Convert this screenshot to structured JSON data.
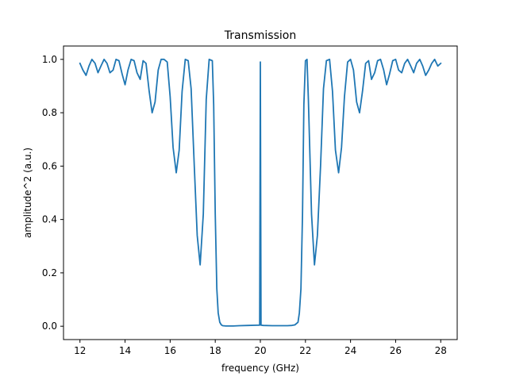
{
  "chart_data": {
    "type": "line",
    "title": "Transmission",
    "xlabel": "frequency (GHz)",
    "ylabel": "amplitude^2 (a.u.)",
    "xlim": [
      11.27,
      28.73
    ],
    "ylim": [
      -0.05,
      1.05
    ],
    "x_ticks": [
      12,
      14,
      16,
      18,
      20,
      22,
      24,
      26,
      28
    ],
    "x_tick_labels": [
      "12",
      "14",
      "16",
      "18",
      "20",
      "22",
      "24",
      "26",
      "28"
    ],
    "y_ticks": [
      0.0,
      0.2,
      0.4,
      0.6,
      0.8,
      1.0
    ],
    "y_tick_labels": [
      "0.0",
      "0.2",
      "0.4",
      "0.6",
      "0.8",
      "1.0"
    ],
    "grid": false,
    "legend": "none",
    "series": [
      {
        "color": "#1f77b4",
        "x": [
          12.0,
          12.13,
          12.27,
          12.4,
          12.53,
          12.67,
          12.8,
          12.93,
          13.07,
          13.2,
          13.33,
          13.47,
          13.6,
          13.73,
          13.87,
          14.0,
          14.13,
          14.27,
          14.4,
          14.53,
          14.67,
          14.8,
          14.93,
          15.07,
          15.2,
          15.33,
          15.47,
          15.6,
          15.73,
          15.87,
          16.0,
          16.13,
          16.27,
          16.4,
          16.53,
          16.67,
          16.8,
          16.93,
          17.07,
          17.2,
          17.33,
          17.47,
          17.6,
          17.73,
          17.87,
          17.93,
          18.0,
          18.07,
          18.13,
          18.2,
          18.27,
          18.33,
          18.47,
          18.6,
          18.8,
          19.07,
          19.47,
          19.87,
          19.97,
          20.0,
          20.03,
          20.13,
          20.53,
          20.93,
          21.2,
          21.4,
          21.53,
          21.67,
          21.73,
          21.8,
          21.87,
          21.93,
          22.0,
          22.07,
          22.13,
          22.27,
          22.4,
          22.53,
          22.67,
          22.8,
          22.93,
          23.07,
          23.2,
          23.33,
          23.47,
          23.6,
          23.73,
          23.87,
          24.0,
          24.13,
          24.27,
          24.4,
          24.53,
          24.67,
          24.8,
          24.93,
          25.07,
          25.2,
          25.33,
          25.47,
          25.6,
          25.73,
          25.87,
          26.0,
          26.13,
          26.27,
          26.4,
          26.53,
          26.67,
          26.8,
          26.93,
          27.07,
          27.2,
          27.33,
          27.47,
          27.6,
          27.73,
          27.87,
          28.0
        ],
        "y": [
          0.985,
          0.96,
          0.94,
          0.975,
          1.0,
          0.985,
          0.95,
          0.975,
          1.0,
          0.985,
          0.95,
          0.96,
          1.0,
          0.995,
          0.945,
          0.905,
          0.96,
          1.0,
          0.995,
          0.95,
          0.925,
          0.995,
          0.985,
          0.88,
          0.8,
          0.84,
          0.96,
          1.0,
          1.0,
          0.99,
          0.86,
          0.67,
          0.575,
          0.66,
          0.88,
          1.0,
          0.995,
          0.89,
          0.6,
          0.34,
          0.23,
          0.42,
          0.85,
          1.0,
          0.995,
          0.83,
          0.42,
          0.14,
          0.05,
          0.015,
          0.005,
          0.002,
          0.001,
          0.001,
          0.001,
          0.002,
          0.003,
          0.004,
          0.004,
          0.99,
          0.004,
          0.003,
          0.002,
          0.002,
          0.002,
          0.003,
          0.005,
          0.015,
          0.05,
          0.14,
          0.42,
          0.83,
          0.995,
          1.0,
          0.85,
          0.42,
          0.23,
          0.34,
          0.6,
          0.89,
          0.995,
          1.0,
          0.88,
          0.66,
          0.575,
          0.67,
          0.86,
          0.99,
          1.0,
          0.96,
          0.84,
          0.8,
          0.88,
          0.985,
          0.995,
          0.925,
          0.95,
          0.995,
          1.0,
          0.96,
          0.905,
          0.945,
          0.995,
          1.0,
          0.96,
          0.95,
          0.985,
          1.0,
          0.975,
          0.95,
          0.985,
          1.0,
          0.975,
          0.94,
          0.96,
          0.985,
          1.0,
          0.975,
          0.985
        ]
      }
    ]
  }
}
